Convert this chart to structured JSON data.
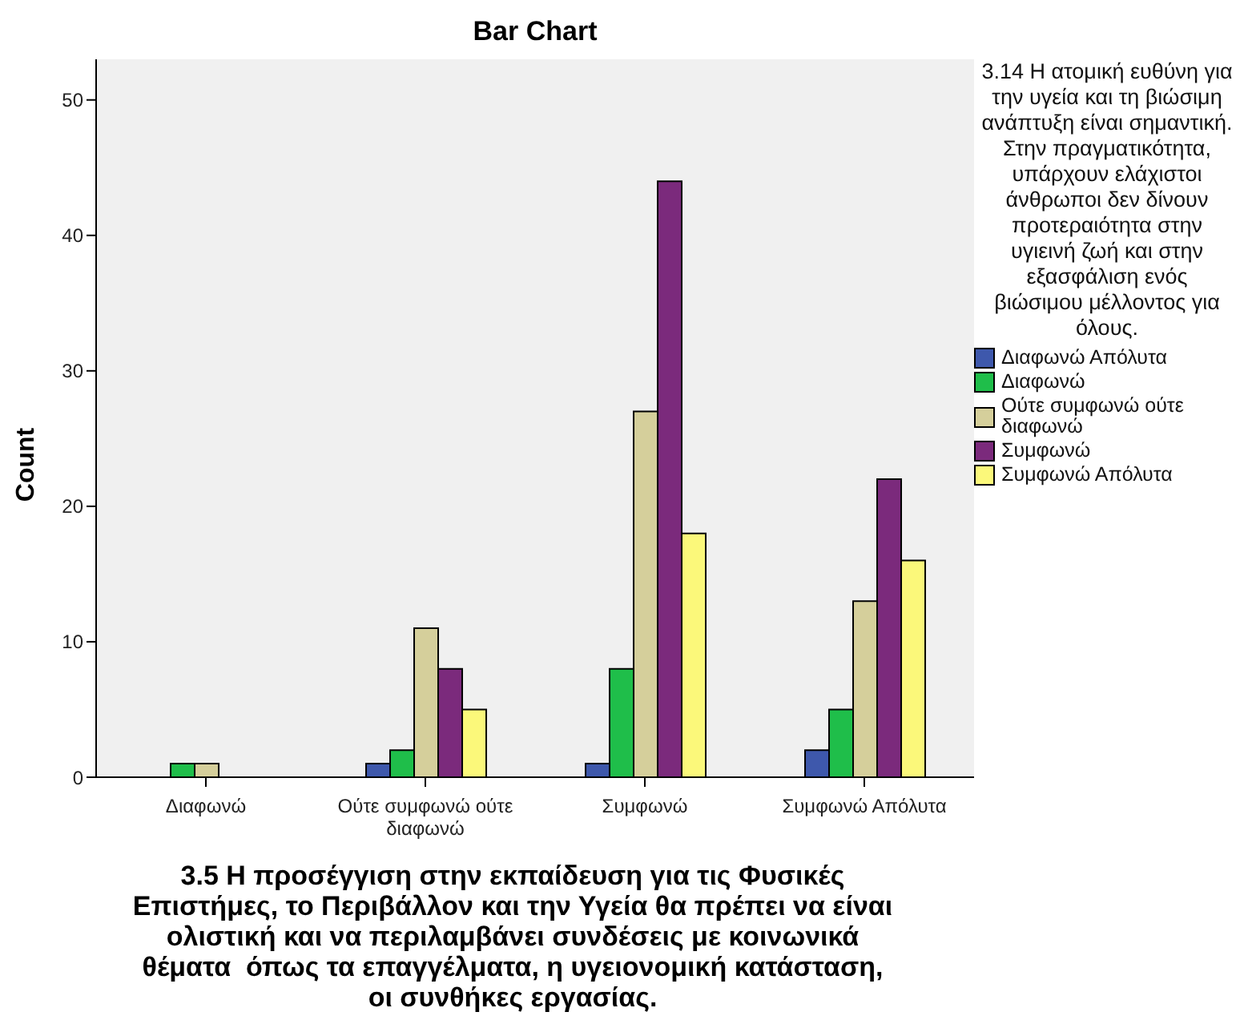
{
  "chart_data": {
    "type": "bar",
    "title": "Bar Chart",
    "xlabel": "3.5 Η προσέγγιση στην εκπαίδευση για τις Φυσικές Επιστήμες, το Περιβάλλον και την Υγεία θα πρέπει να είναι ολιστική και να περιλαμβάνει συνδέσεις με κοινωνικά θέματα  όπως τα επαγγέλματα, η υγειονομική κατάσταση, οι συνθήκες εργασίας.",
    "ylabel": "Count",
    "legend_title": "3.14 Η ατομική ευθύνη για την υγεία και τη βιώσιμη ανάπτυξη είναι σημαντική. Στην πραγματικότητα, υπάρχουν ελάχιστοι άνθρωποι δεν δίνουν προτεραιότητα στην υγιεινή ζωή και στην εξασφάλιση ενός βιώσιμου μέλλοντος για όλους.",
    "legend": "right",
    "categories": [
      "Διαφωνώ",
      "Ούτε συμφωνώ ούτε διαφωνώ",
      "Συμφωνώ",
      "Συμφωνώ Απόλυτα"
    ],
    "series": [
      {
        "name": "Διαφωνώ Απόλυτα",
        "color": "#3e58ac",
        "values": [
          null,
          1,
          1,
          2
        ]
      },
      {
        "name": "Διαφωνώ",
        "color": "#1fbe4a",
        "values": [
          1,
          2,
          8,
          5
        ]
      },
      {
        "name": "Ούτε συμφωνώ ούτε διαφωνώ",
        "color": "#d5cf9b",
        "values": [
          1,
          11,
          27,
          13
        ]
      },
      {
        "name": "Συμφωνώ",
        "color": "#7b2a7c",
        "values": [
          null,
          8,
          44,
          22
        ]
      },
      {
        "name": "Συμφωνώ Απόλυτα",
        "color": "#fbf87a",
        "values": [
          null,
          5,
          18,
          16
        ]
      }
    ],
    "ylim": [
      0,
      53
    ],
    "yticks": [
      0,
      10,
      20,
      30,
      40,
      50
    ]
  }
}
